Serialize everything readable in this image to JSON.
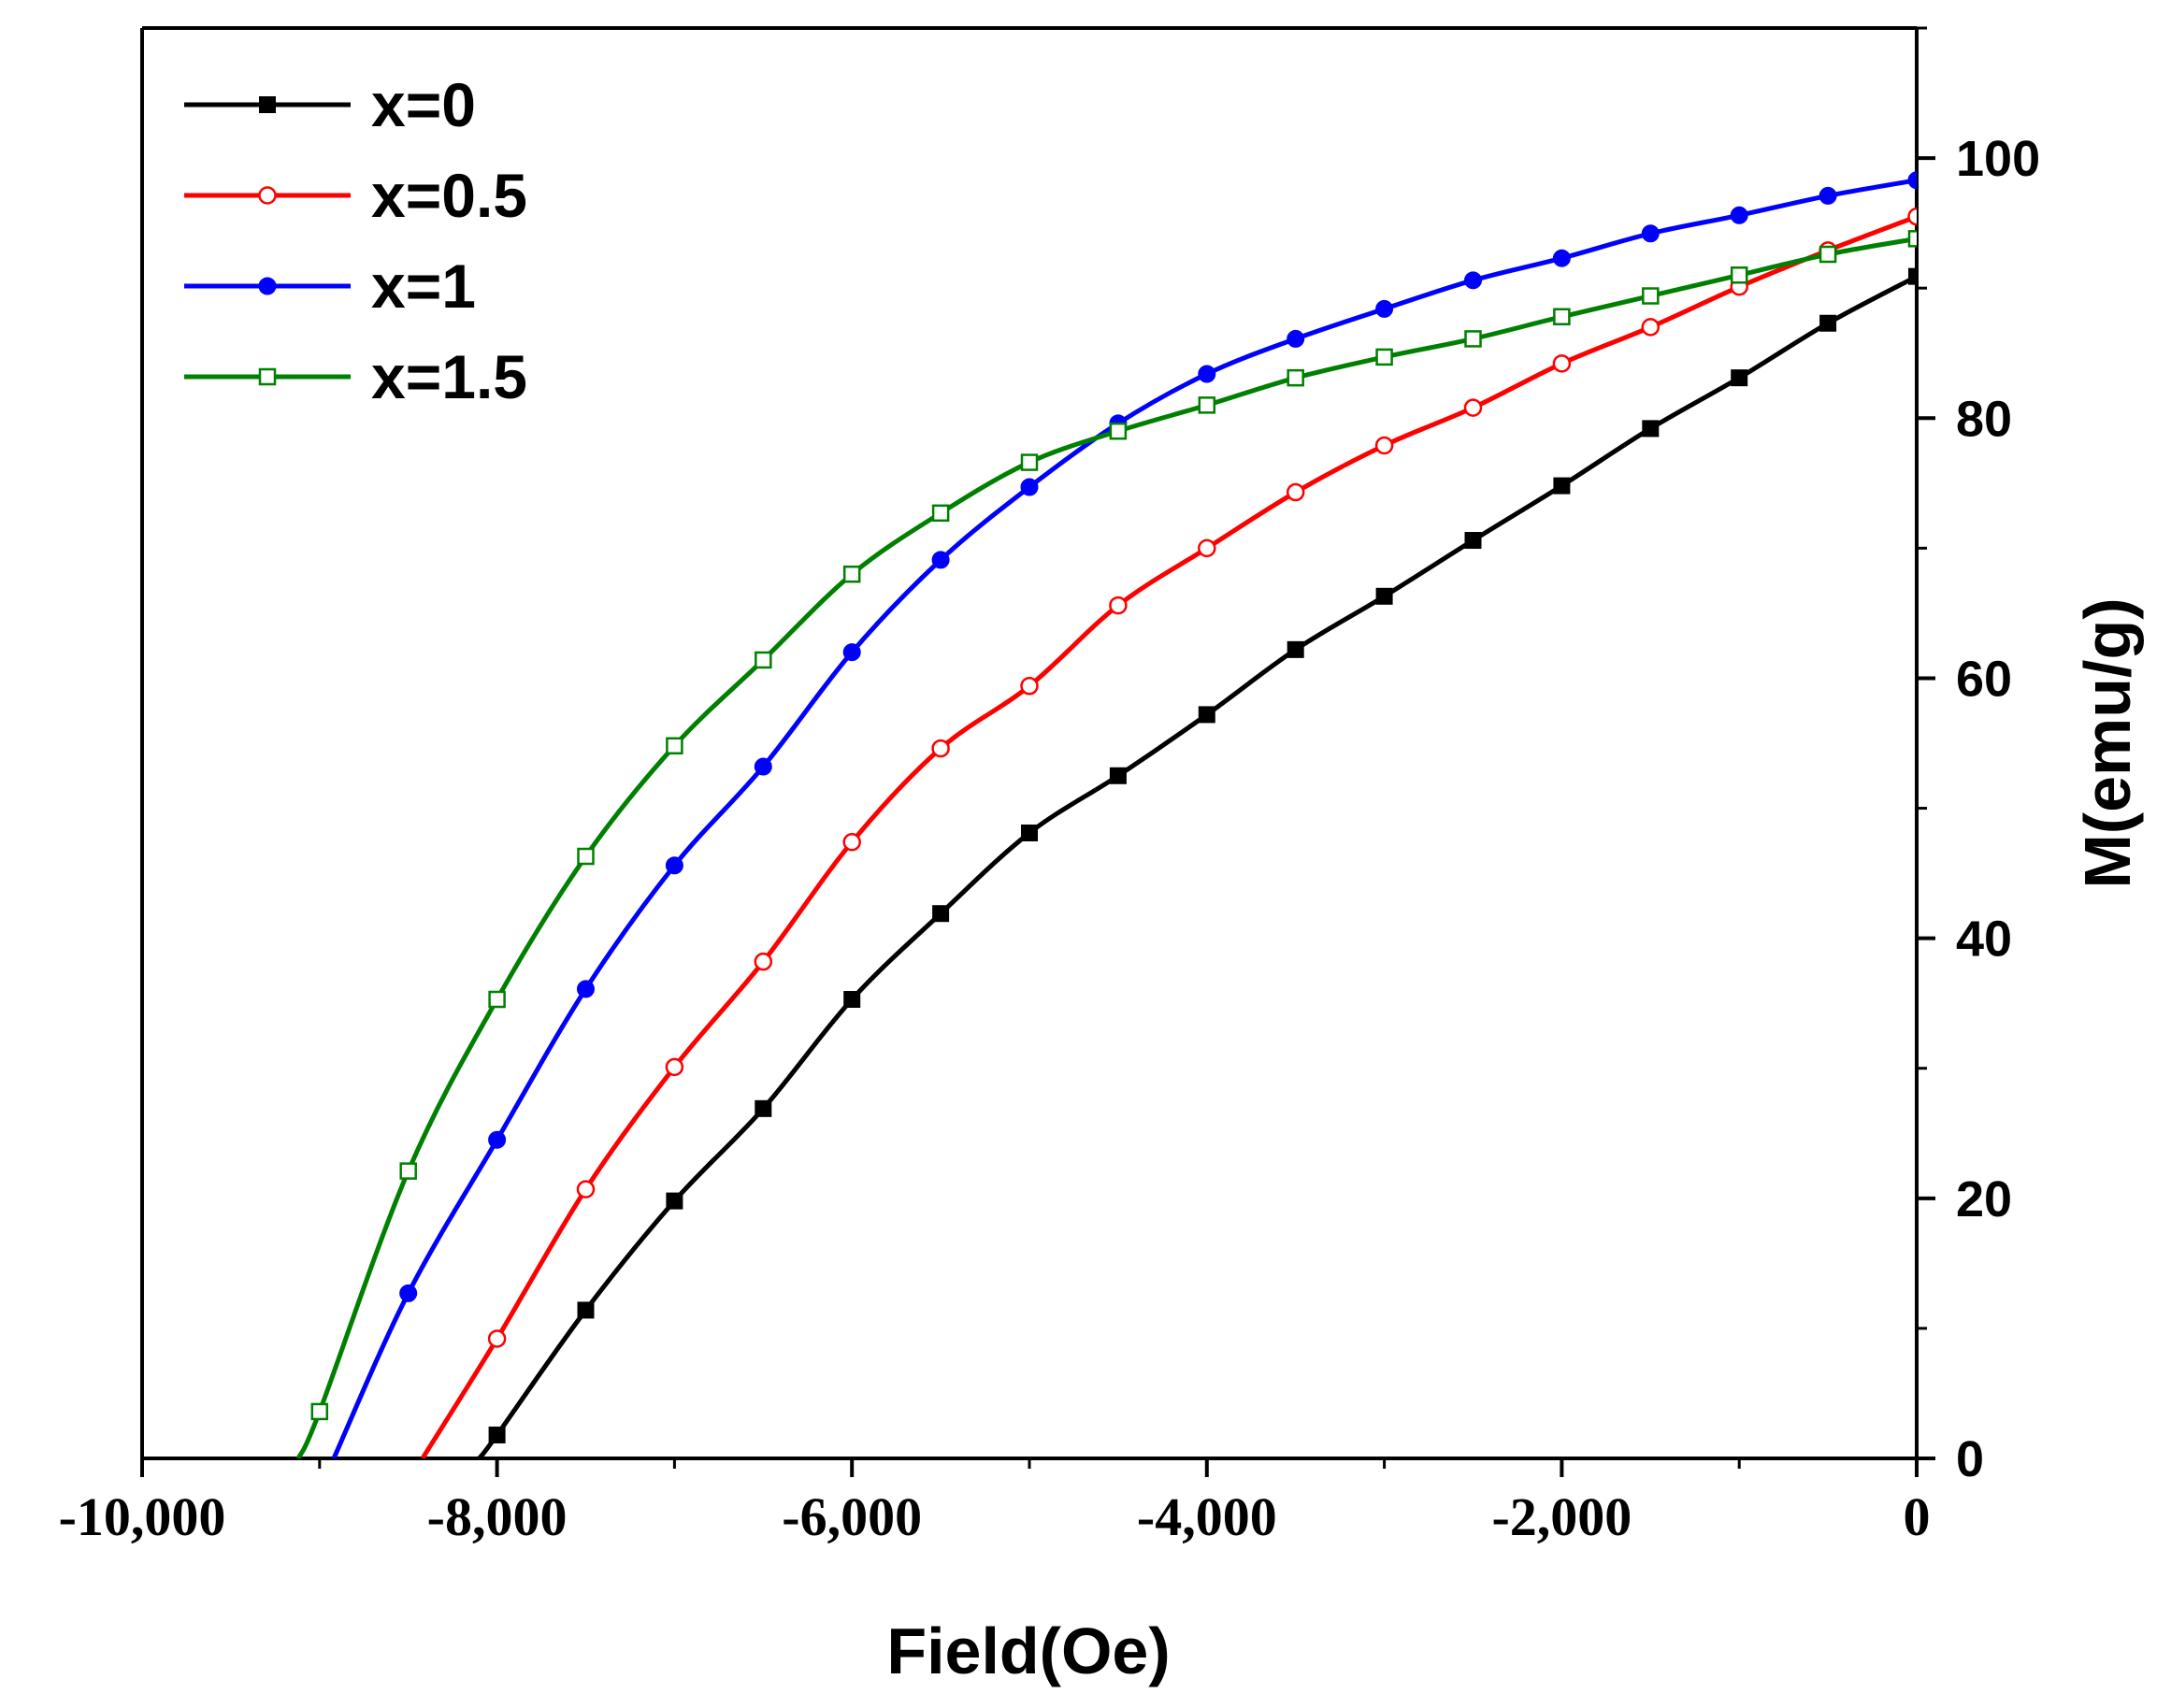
{
  "chart_data": {
    "type": "line",
    "title": "",
    "xlabel": "Field(Oe)",
    "ylabel": "M(emu/g)",
    "xlim": [
      -10000,
      0
    ],
    "ylim": [
      0,
      110
    ],
    "x_ticks": [
      -10000,
      -8000,
      -6000,
      -4000,
      -2000,
      0
    ],
    "x_tick_labels": [
      "-10,000",
      "-8,000",
      "-6,000",
      "-4,000",
      "-2,000",
      "0"
    ],
    "y_ticks": [
      0,
      20,
      40,
      60,
      80,
      100
    ],
    "y_tick_labels": [
      "0",
      "20",
      "40",
      "60",
      "80",
      "100"
    ],
    "y_axis_side": "right",
    "legend_position": "top-left",
    "grid": false,
    "series": [
      {
        "name": "x=0",
        "color": "#000000",
        "marker": "filled-square",
        "x": [
          -8000,
          -7500,
          -7000,
          -6500,
          -6000,
          -5500,
          -5000,
          -4500,
          -4000,
          -3500,
          -3000,
          -2500,
          -2000,
          -1500,
          -1000,
          -500,
          0
        ],
        "values": [
          1.8,
          11.4,
          19.8,
          26.9,
          35.3,
          41.9,
          48.1,
          52.5,
          57.2,
          62.2,
          66.3,
          70.6,
          74.8,
          79.2,
          83.1,
          87.3,
          90.9
        ],
        "x_intercept": -8100
      },
      {
        "name": "x=0.5",
        "color": "#ff0000",
        "marker": "open-circle",
        "x": [
          -8000,
          -7500,
          -7000,
          -6500,
          -6000,
          -5500,
          -5000,
          -4500,
          -4000,
          -3500,
          -3000,
          -2500,
          -2000,
          -1500,
          -1000,
          -500,
          0
        ],
        "values": [
          9.2,
          20.7,
          30.1,
          38.2,
          47.4,
          54.6,
          59.4,
          65.6,
          70.0,
          74.3,
          77.9,
          80.8,
          84.2,
          87.0,
          90.1,
          92.9,
          95.5
        ],
        "x_intercept": -8420
      },
      {
        "name": "x=1",
        "color": "#0000ff",
        "marker": "filled-circle",
        "x": [
          -8500,
          -8000,
          -7500,
          -7000,
          -6500,
          -6000,
          -5500,
          -5000,
          -4500,
          -4000,
          -3500,
          -3000,
          -2500,
          -2000,
          -1500,
          -1000,
          -500,
          0
        ],
        "values": [
          12.7,
          24.5,
          36.1,
          45.6,
          53.2,
          62.0,
          69.1,
          74.7,
          79.6,
          83.4,
          86.1,
          88.4,
          90.6,
          92.3,
          94.2,
          95.6,
          97.1,
          98.3
        ],
        "x_intercept": -8920
      },
      {
        "name": "x=1.5",
        "color": "#008000",
        "marker": "open-square",
        "x": [
          -9000,
          -8500,
          -8000,
          -7500,
          -7000,
          -6500,
          -6000,
          -5500,
          -5000,
          -4500,
          -4000,
          -3500,
          -3000,
          -2500,
          -2000,
          -1500,
          -1000,
          -500,
          0
        ],
        "values": [
          3.6,
          22.1,
          35.3,
          46.3,
          54.8,
          61.4,
          68.0,
          72.7,
          76.6,
          79.0,
          81.0,
          83.1,
          84.7,
          86.1,
          87.8,
          89.4,
          91.0,
          92.6,
          93.8
        ],
        "x_intercept": -9120
      }
    ]
  }
}
